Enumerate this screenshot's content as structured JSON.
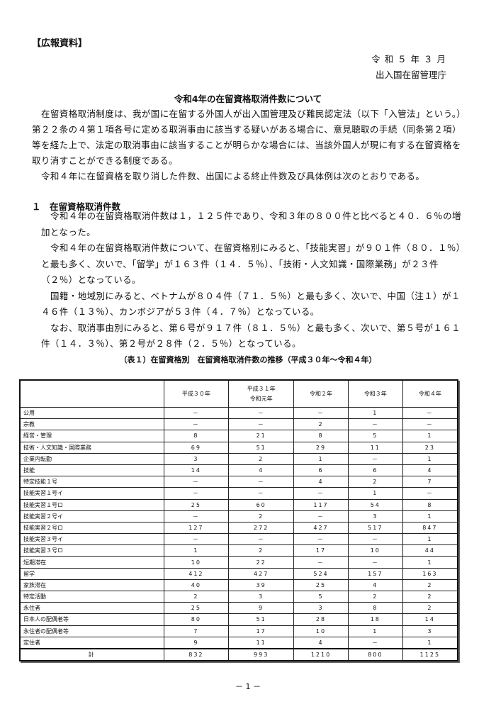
{
  "header": {
    "tag": "【広報資料】",
    "date": "令 和 ５ 年 ３ 月",
    "agency": "出入国在留管理庁"
  },
  "title": "令和4年の在留資格取消件数について",
  "intro": [
    "在留資格取消制度は、我が国に在留する外国人が出入国管理及び難民認定法（以下「入管法」という。）第２２条の４第１項各号に定める取消事由に該当する疑いがある場合に、意見聴取の手続（同条第２項）等を経た上で、法定の取消事由に該当することが明らかな場合には、当該外国人が現に有する在留資格を取り消すことができる制度である。",
    "令和４年に在留資格を取り消した件数、出国による終止件数及び具体例は次のとおりである。"
  ],
  "section1": {
    "heading": "１　在留資格取消件数",
    "paragraphs": [
      "令和４年の在留資格取消件数は１，１２５件であり、令和３年の８００件と比べると４０．６％の増加となった。",
      "令和４年の在留資格取消件数について、在留資格別にみると、「技能実習」が９０１件（８０．１％）と最も多く、次いで、「留学」が１６３件（１４．５％）、「技術・人文知識・国際業務」が２３件（２％）となっている。",
      "国籍・地域別にみると、ベトナムが８０４件（７１．５％）と最も多く、次いで、中国（注１）が１４６件（１３％）、カンボジアが５３件（４．７％）となっている。",
      "なお、取消事由別にみると、第６号が９１７件（８１．５％）と最も多く、次いで、第５号が１６１件（１４．３％）、第２号が２８件（２．５％）となっている。"
    ]
  },
  "table": {
    "caption": "（表１）在留資格別　在留資格取消件数の推移（平成３０年～令和４年）",
    "columns": [
      "平成３０年",
      "平成３１年\n令和元年",
      "令和２年",
      "令和３年",
      "令和４年"
    ],
    "rows": [
      {
        "label": "公用",
        "values": [
          "－",
          "－",
          "－",
          "1",
          "－"
        ]
      },
      {
        "label": "宗教",
        "values": [
          "－",
          "－",
          "2",
          "－",
          "－"
        ]
      },
      {
        "label": "経営・管理",
        "values": [
          "8",
          "21",
          "8",
          "5",
          "1"
        ]
      },
      {
        "label": "技術・人文知識・国際業務",
        "values": [
          "69",
          "51",
          "29",
          "11",
          "23"
        ]
      },
      {
        "label": "企業内転勤",
        "values": [
          "3",
          "2",
          "1",
          "－",
          "1"
        ]
      },
      {
        "label": "技能",
        "values": [
          "14",
          "4",
          "6",
          "6",
          "4"
        ]
      },
      {
        "label": "特定技能１号",
        "values": [
          "－",
          "－",
          "4",
          "2",
          "7"
        ]
      },
      {
        "label": "技能実習１号イ",
        "values": [
          "－",
          "－",
          "－",
          "1",
          "－"
        ]
      },
      {
        "label": "技能実習１号ロ",
        "values": [
          "25",
          "60",
          "117",
          "54",
          "8"
        ]
      },
      {
        "label": "技能実習２号イ",
        "values": [
          "－",
          "2",
          "－",
          "3",
          "1"
        ]
      },
      {
        "label": "技能実習２号ロ",
        "values": [
          "127",
          "272",
          "427",
          "517",
          "847"
        ]
      },
      {
        "label": "技能実習３号イ",
        "values": [
          "－",
          "－",
          "－",
          "－",
          "1"
        ]
      },
      {
        "label": "技能実習３号ロ",
        "values": [
          "1",
          "2",
          "17",
          "10",
          "44"
        ]
      },
      {
        "label": "短期滞在",
        "values": [
          "10",
          "22",
          "－",
          "－",
          "1"
        ]
      },
      {
        "label": "留学",
        "values": [
          "412",
          "427",
          "524",
          "157",
          "163"
        ]
      },
      {
        "label": "家族滞在",
        "values": [
          "40",
          "39",
          "25",
          "4",
          "2"
        ]
      },
      {
        "label": "特定活動",
        "values": [
          "2",
          "3",
          "5",
          "2",
          "2"
        ]
      },
      {
        "label": "永住者",
        "values": [
          "25",
          "9",
          "3",
          "8",
          "2"
        ]
      },
      {
        "label": "日本人の配偶者等",
        "values": [
          "80",
          "51",
          "28",
          "18",
          "14"
        ]
      },
      {
        "label": "永住者の配偶者等",
        "values": [
          "7",
          "17",
          "10",
          "1",
          "3"
        ]
      },
      {
        "label": "定住者",
        "values": [
          "9",
          "11",
          "4",
          "－",
          "1"
        ]
      }
    ],
    "total": {
      "label": "計",
      "values": [
        "832",
        "993",
        "1210",
        "800",
        "1125"
      ]
    }
  },
  "footer": {
    "page": "－ 1 －"
  }
}
